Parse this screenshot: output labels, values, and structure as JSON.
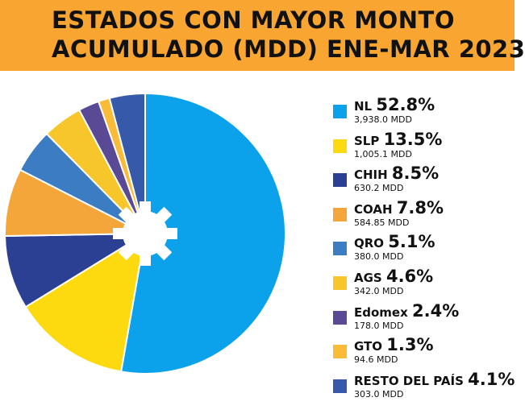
{
  "title": {
    "line1": "ESTADOS CON MAYOR MONTO",
    "line2": "ACUMULADO (MDD) ENE-MAR 2023"
  },
  "colors": {
    "banner": "#f9a531",
    "hub": "#ffffff"
  },
  "chart_data": {
    "type": "pie",
    "title": "ESTADOS CON MAYOR MONTO ACUMULADO (MDD) ENE-MAR 2023",
    "unit": "MDD",
    "slices": [
      {
        "label": "NL",
        "percent": 52.8,
        "percent_label": "52.8%",
        "value": 3938.0,
        "value_label": "3,938.0",
        "color": "#0ca2eb"
      },
      {
        "label": "SLP",
        "percent": 13.5,
        "percent_label": "13.5%",
        "value": 1005.1,
        "value_label": "1,005.1",
        "color": "#fdd90f"
      },
      {
        "label": "CHIH",
        "percent": 8.5,
        "percent_label": "8.5%",
        "value": 630.2,
        "value_label": "630.2",
        "color": "#2b3f93"
      },
      {
        "label": "COAH",
        "percent": 7.8,
        "percent_label": "7.8%",
        "value": 584.85,
        "value_label": "584.85",
        "color": "#f4a63a"
      },
      {
        "label": "QRO",
        "percent": 5.1,
        "percent_label": "5.1%",
        "value": 380.0,
        "value_label": "380.0",
        "color": "#3b7cc2"
      },
      {
        "label": "AGS",
        "percent": 4.6,
        "percent_label": "4.6%",
        "value": 342.0,
        "value_label": "342.0",
        "color": "#f7c62b"
      },
      {
        "label": "Edomex",
        "percent": 2.4,
        "percent_label": "2.4%",
        "value": 178.0,
        "value_label": "178.0",
        "color": "#5a4a96"
      },
      {
        "label": "GTO",
        "percent": 1.3,
        "percent_label": "1.3%",
        "value": 94.6,
        "value_label": "94.6",
        "color": "#f9bb38"
      },
      {
        "label": "RESTO DEL PAÍS",
        "percent": 4.1,
        "percent_label": "4.1%",
        "value": 303.0,
        "value_label": "303.0",
        "color": "#365aa9"
      }
    ],
    "legend": "right"
  }
}
